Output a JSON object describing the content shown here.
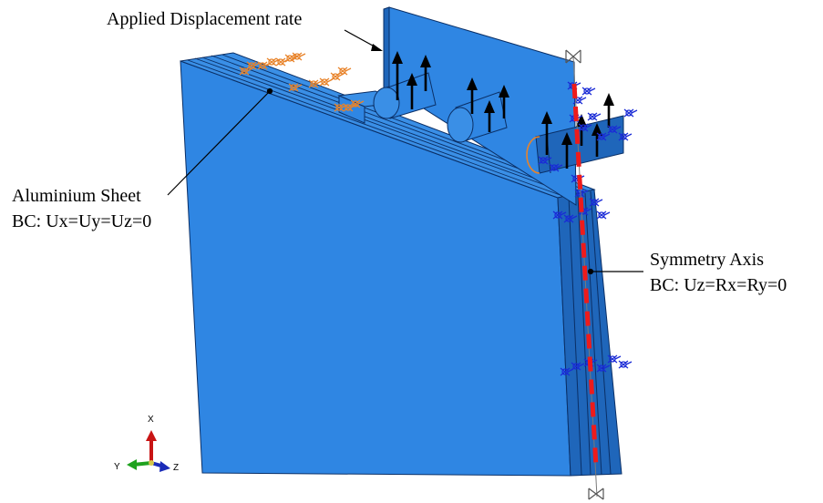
{
  "annotations": {
    "applied_displacement": "Applied Displacement rate",
    "aluminium_sheet": "Aluminium Sheet",
    "aluminium_bc": "BC: Ux=Uy=Uz=0",
    "symmetry_axis": "Symmetry Axis",
    "symmetry_bc": "BC: Uz=Rx=Ry=0"
  },
  "triad": {
    "x": "X",
    "y": "Y",
    "z": "Z"
  },
  "colors": {
    "model_face": "#2f86e3",
    "model_top": "#3b8ee6",
    "model_side": "#1f66ba",
    "edge": "#0a2f66",
    "arrow": "#000000",
    "symmetry_line": "#ee1b1b",
    "fixed_bc_symbol": "#e8832a",
    "symmetry_bc_symbol": "#1a2bd6",
    "axis_x": "#c81414",
    "axis_y": "#1ea21e",
    "axis_z": "#1a2bb8"
  }
}
